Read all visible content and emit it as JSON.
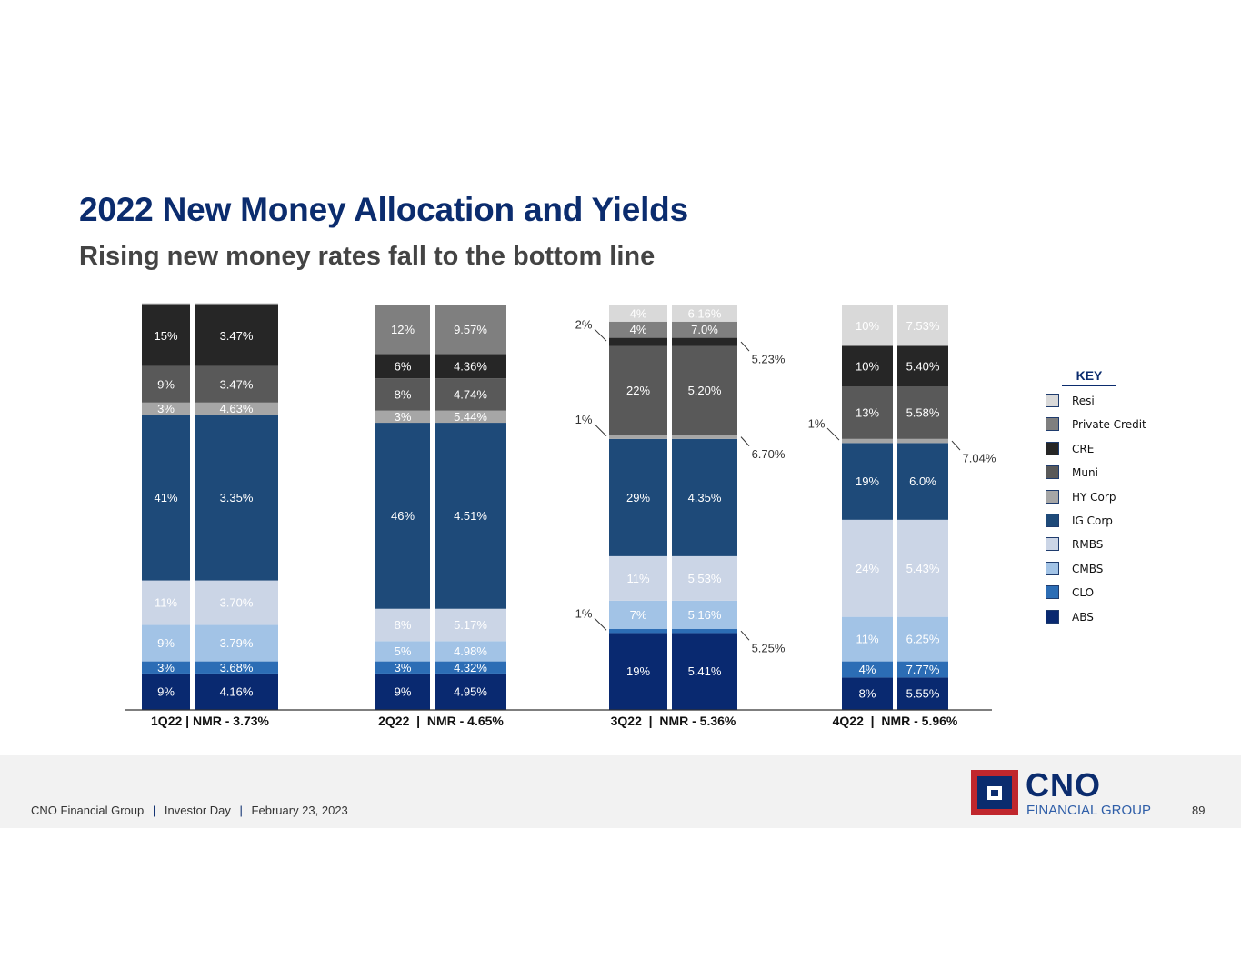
{
  "title": "2022 New Money Allocation and Yields",
  "subtitle": "Rising new money rates fall to the bottom line",
  "colors": {
    "ABS": "#092970",
    "CLO": "#2c6db5",
    "CMBS": "#a2c3e6",
    "RMBS": "#cbd5e6",
    "IG Corp": "#1e4a79",
    "HY Corp": "#a6a6a6",
    "Muni": "#595959",
    "CRE": "#262626",
    "Private Credit": "#7f7f7f",
    "Resi": "#d9d9d9"
  },
  "chart_data": {
    "type": "stacked-bar",
    "title": "",
    "categories": [
      "1Q22 | NMR - 3.73%",
      "2Q22  |  NMR - 4.65%",
      "3Q22  |  NMR - 5.36%",
      "4Q22  |  NMR - 5.96%"
    ],
    "series_order": [
      "ABS",
      "CLO",
      "CMBS",
      "RMBS",
      "IG Corp",
      "HY Corp",
      "Muni",
      "CRE",
      "Private Credit",
      "Resi"
    ],
    "quarters": [
      {
        "label": "1Q22 | NMR - 3.73%",
        "segments": [
          {
            "series": "ABS",
            "allocation": 9,
            "alloc_label": "9%",
            "yield_label": "4.16%"
          },
          {
            "series": "CLO",
            "allocation": 3,
            "alloc_label": "3%",
            "yield_label": "3.68%"
          },
          {
            "series": "CMBS",
            "allocation": 9,
            "alloc_label": "9%",
            "yield_label": "3.79%"
          },
          {
            "series": "RMBS",
            "allocation": 11,
            "alloc_label": "11%",
            "yield_label": "3.70%"
          },
          {
            "series": "IG Corp",
            "allocation": 41,
            "alloc_label": "41%",
            "yield_label": "3.35%"
          },
          {
            "series": "HY Corp",
            "allocation": 3,
            "alloc_label": "3%",
            "yield_label": "4.63%"
          },
          {
            "series": "Muni",
            "allocation": 9,
            "alloc_label": "9%",
            "yield_label": "3.47%"
          },
          {
            "series": "CRE",
            "allocation": 15,
            "alloc_label": "15%",
            "yield_label": "3.47%"
          },
          {
            "series": "Private Credit",
            "allocation": 0.5,
            "alloc_label": "",
            "yield_label": ""
          }
        ],
        "callouts": []
      },
      {
        "label": "2Q22  |  NMR - 4.65%",
        "segments": [
          {
            "series": "ABS",
            "allocation": 9,
            "alloc_label": "9%",
            "yield_label": "4.95%"
          },
          {
            "series": "CLO",
            "allocation": 3,
            "alloc_label": "3%",
            "yield_label": "4.32%"
          },
          {
            "series": "CMBS",
            "allocation": 5,
            "alloc_label": "5%",
            "yield_label": "4.98%"
          },
          {
            "series": "RMBS",
            "allocation": 8,
            "alloc_label": "8%",
            "yield_label": "5.17%"
          },
          {
            "series": "IG Corp",
            "allocation": 46,
            "alloc_label": "46%",
            "yield_label": "4.51%"
          },
          {
            "series": "HY Corp",
            "allocation": 3,
            "alloc_label": "3%",
            "yield_label": "5.44%"
          },
          {
            "series": "Muni",
            "allocation": 8,
            "alloc_label": "8%",
            "yield_label": "4.74%"
          },
          {
            "series": "CRE",
            "allocation": 6,
            "alloc_label": "6%",
            "yield_label": "4.36%"
          },
          {
            "series": "Private Credit",
            "allocation": 12,
            "alloc_label": "12%",
            "yield_label": "9.57%"
          }
        ],
        "callouts": []
      },
      {
        "label": "3Q22  |  NMR - 5.36%",
        "segments": [
          {
            "series": "ABS",
            "allocation": 19,
            "alloc_label": "19%",
            "yield_label": "5.41%"
          },
          {
            "series": "CLO",
            "allocation": 1,
            "alloc_label": "",
            "yield_label": ""
          },
          {
            "series": "CMBS",
            "allocation": 7,
            "alloc_label": "7%",
            "yield_label": "5.16%"
          },
          {
            "series": "RMBS",
            "allocation": 11,
            "alloc_label": "11%",
            "yield_label": "5.53%"
          },
          {
            "series": "IG Corp",
            "allocation": 29,
            "alloc_label": "29%",
            "yield_label": "4.35%"
          },
          {
            "series": "HY Corp",
            "allocation": 1,
            "alloc_label": "",
            "yield_label": ""
          },
          {
            "series": "Muni",
            "allocation": 22,
            "alloc_label": "22%",
            "yield_label": "5.20%"
          },
          {
            "series": "CRE",
            "allocation": 2,
            "alloc_label": "",
            "yield_label": ""
          },
          {
            "series": "Private Credit",
            "allocation": 4,
            "alloc_label": "4%",
            "yield_label": "7.0%"
          },
          {
            "series": "Resi",
            "allocation": 4,
            "alloc_label": "4%",
            "yield_label": "6.16%"
          }
        ],
        "callouts": [
          {
            "series": "CLO",
            "alloc_label": "1%",
            "yield_label": "5.25%"
          },
          {
            "series": "HY Corp",
            "alloc_label": "1%",
            "yield_label": "6.70%"
          },
          {
            "series": "CRE",
            "alloc_label": "2%",
            "yield_label": "5.23%"
          }
        ]
      },
      {
        "label": "4Q22  |  NMR - 5.96%",
        "segments": [
          {
            "series": "ABS",
            "allocation": 8,
            "alloc_label": "8%",
            "yield_label": "5.55%"
          },
          {
            "series": "CLO",
            "allocation": 4,
            "alloc_label": "4%",
            "yield_label": "7.77%"
          },
          {
            "series": "CMBS",
            "allocation": 11,
            "alloc_label": "11%",
            "yield_label": "6.25%"
          },
          {
            "series": "RMBS",
            "allocation": 24,
            "alloc_label": "24%",
            "yield_label": "5.43%"
          },
          {
            "series": "IG Corp",
            "allocation": 19,
            "alloc_label": "19%",
            "yield_label": "6.0%"
          },
          {
            "series": "HY Corp",
            "allocation": 1,
            "alloc_label": "",
            "yield_label": ""
          },
          {
            "series": "Muni",
            "allocation": 13,
            "alloc_label": "13%",
            "yield_label": "5.58%"
          },
          {
            "series": "CRE",
            "allocation": 10,
            "alloc_label": "10%",
            "yield_label": "5.40%"
          },
          {
            "series": "Resi",
            "allocation": 10,
            "alloc_label": "10%",
            "yield_label": "7.53%"
          }
        ],
        "callouts": [
          {
            "series": "HY Corp",
            "alloc_label": "1%",
            "yield_label": "7.04%"
          }
        ]
      }
    ]
  },
  "legend": {
    "title": "KEY",
    "items": [
      "Resi",
      "Private Credit",
      "CRE",
      "Muni",
      "HY Corp",
      "IG Corp",
      "RMBS",
      "CMBS",
      "CLO",
      "ABS"
    ]
  },
  "footer": {
    "company": "CNO Financial Group",
    "event": "Investor Day",
    "date": "February 23, 2023",
    "separator": "|",
    "page_number": "89"
  },
  "logo": {
    "name": "CNO",
    "subtitle": "FINANCIAL GROUP"
  }
}
